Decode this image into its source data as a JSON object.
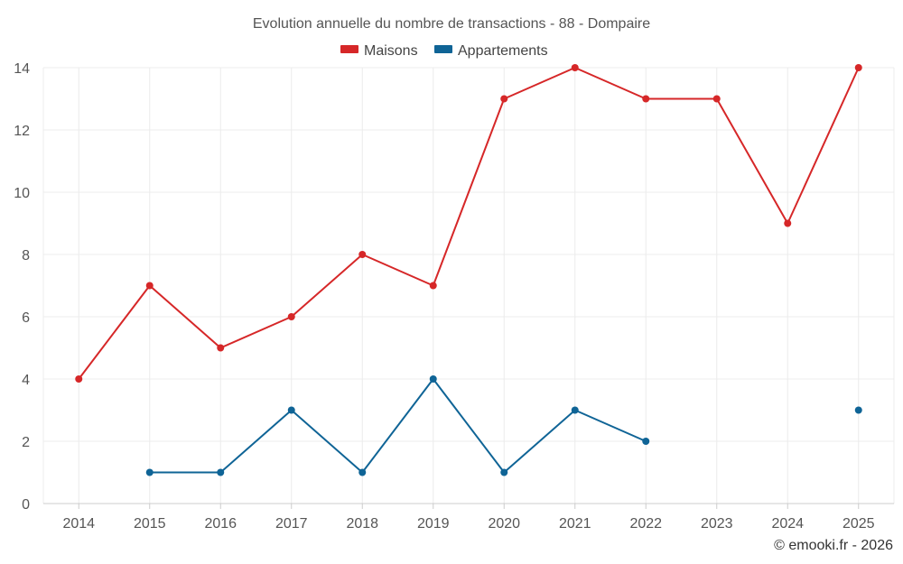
{
  "chart_data": {
    "type": "line",
    "title": "Evolution annuelle du nombre de transactions - 88 - Dompaire",
    "xlabel": "",
    "ylabel": "",
    "categories": [
      "2014",
      "2015",
      "2016",
      "2017",
      "2018",
      "2019",
      "2020",
      "2021",
      "2022",
      "2023",
      "2024",
      "2025"
    ],
    "ylim": [
      0,
      14
    ],
    "yticks": [
      0,
      2,
      4,
      6,
      8,
      10,
      12,
      14
    ],
    "grid": true,
    "legend_position": "top-center",
    "series": [
      {
        "name": "Maisons",
        "color": "#d62728",
        "values": [
          4,
          7,
          5,
          6,
          8,
          7,
          13,
          14,
          13,
          13,
          9,
          14
        ]
      },
      {
        "name": "Appartements",
        "color": "#0f6496",
        "values": [
          null,
          1,
          1,
          3,
          1,
          4,
          1,
          3,
          2,
          null,
          null,
          3
        ]
      }
    ]
  },
  "credit": "© emooki.fr - 2026"
}
